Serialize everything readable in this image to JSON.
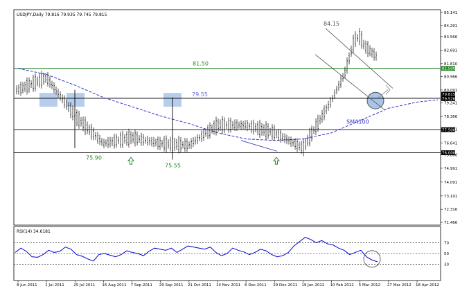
{
  "chart_data": [
    {
      "type": "line",
      "panel": "price",
      "title": "USDJPY,Daily  79.816 79.935 79.745 79.815",
      "y_axis": {
        "ticks": [
          "85.141",
          "84.291",
          "83.566",
          "82.691",
          "81.810",
          "80.966",
          "80.091",
          "79.241",
          "78.366",
          "77.541",
          "76.641",
          "75.866",
          "74.991",
          "74.091",
          "73.191",
          "72.316",
          "71.466"
        ],
        "ylim": [
          71.466,
          85.141
        ],
        "side": "right"
      },
      "x_axis": {
        "ticks": [
          "8 Jun 2011",
          "1 Jul 2011",
          "25 Jul 2011",
          "16 Aug 2011",
          "7 Sep 2011",
          "29 Sep 2011",
          "21 Oct 2011",
          "14 Nov 2011",
          "6 Dec 2011",
          "29 Dec 2011",
          "19 Jan 2012",
          "10 Feb 2012",
          "5 Mar 2012",
          "27 Mar 2012",
          "18 Apr 2012"
        ]
      },
      "series": [
        {
          "role": "close",
          "color": "#000000",
          "x": [
            "8 Jun 2011",
            "1 Jul 2011",
            "25 Jul 2011",
            "16 Aug 2011",
            "7 Sep 2011",
            "29 Sep 2011",
            "21 Oct 2011",
            "14 Nov 2011",
            "6 Dec 2011",
            "29 Dec 2011",
            "19 Jan 2012",
            "10 Feb 2012",
            "5 Mar 2012",
            "27 Mar 2012",
            "18 Apr 2012"
          ],
          "values": [
            80.1,
            80.9,
            78.4,
            76.6,
            77.0,
            76.6,
            76.5,
            77.8,
            77.8,
            77.3,
            76.3,
            79.4,
            83.2,
            81.6,
            80.9
          ],
          "extra": [
            {
              "x": "24 Apr 2012",
              "y": 79.815
            }
          ]
        },
        {
          "name": "SMA100",
          "role": "sma",
          "color": "#3333cc",
          "dashed": true,
          "x": [
            "8 Jun 2011",
            "1 Jul 2011",
            "25 Jul 2011",
            "16 Aug 2011",
            "7 Sep 2011",
            "29 Sep 2011",
            "21 Oct 2011",
            "14 Nov 2011",
            "6 Dec 2011",
            "29 Dec 2011",
            "19 Jan 2012",
            "10 Feb 2012",
            "5 Mar 2012",
            "27 Mar 2012",
            "18 Apr 2012"
          ],
          "values": [
            81.5,
            81.1,
            80.4,
            79.6,
            79.0,
            78.4,
            77.9,
            77.3,
            76.9,
            76.8,
            76.9,
            77.3,
            78.1,
            78.9,
            79.3
          ]
        }
      ],
      "horizontal_lines": [
        {
          "y": 81.5,
          "color": "#2e8b2e",
          "label": "81.50"
        },
        {
          "y": 79.55,
          "color": "#000000",
          "label": "79.55"
        },
        {
          "y": 77.5,
          "color": "#000000"
        },
        {
          "y": 76.0,
          "color": "#000000"
        }
      ],
      "price_labels": [
        "81.500",
        "79.815",
        "79.526",
        "77.500",
        "76.000"
      ],
      "annotations": [
        {
          "text": "84.15",
          "color": "#555555"
        },
        {
          "text": "81.50",
          "color": "#2e8b2e"
        },
        {
          "text": "79.55",
          "color": "#6a6adf"
        },
        {
          "text": "75.90",
          "color": "#2e8b2e"
        },
        {
          "text": "75.55",
          "color": "#2e8b2e"
        },
        {
          "text": "SMA100",
          "color": "#3333cc"
        }
      ],
      "highlight_color": "#a9c4e8",
      "grid": false
    },
    {
      "type": "line",
      "panel": "indicator",
      "title": "RSI(14) 34.6181",
      "y_axis": {
        "ticks": [
          "70",
          "50",
          "30"
        ],
        "ylim": [
          0,
          100
        ],
        "side": "right"
      },
      "series": [
        {
          "role": "rsi",
          "color": "#0000cc",
          "values": [
            52,
            60,
            54,
            44,
            43,
            48,
            56,
            52,
            54,
            62,
            58,
            48,
            45,
            40,
            36,
            48,
            50,
            47,
            44,
            48,
            55,
            52,
            50,
            46,
            54,
            60,
            58,
            56,
            60,
            52,
            58,
            64,
            62,
            60,
            58,
            62,
            52,
            46,
            50,
            60,
            56,
            53,
            48,
            52,
            58,
            55,
            48,
            44,
            46,
            52,
            64,
            72,
            80,
            76,
            70,
            74,
            68,
            66,
            60,
            56,
            48,
            52,
            56,
            44,
            38,
            34.6
          ]
        }
      ],
      "levels": [
        70,
        50,
        30
      ]
    }
  ]
}
